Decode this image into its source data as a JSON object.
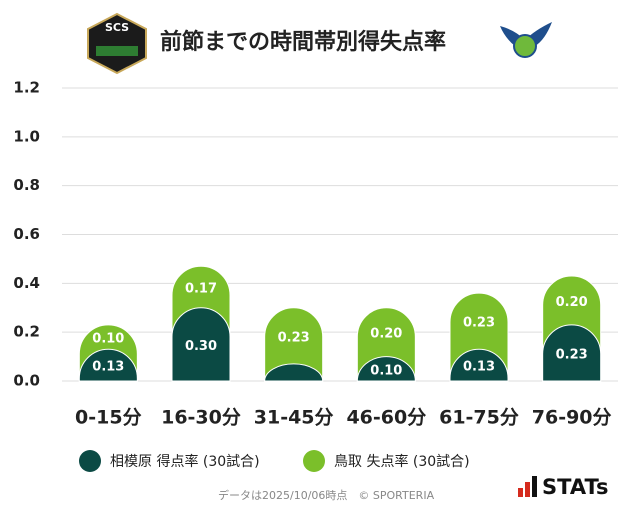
{
  "chart_data": {
    "type": "stacked_bar",
    "title": "前節までの時間帯別得失点率",
    "logo_text": "SCS",
    "categories": [
      "0-15分",
      "16-30分",
      "31-45分",
      "46-60分",
      "61-75分",
      "76-90分"
    ],
    "series": [
      {
        "name": "相模原 得点率 (30試合)",
        "color": "#0b4a44",
        "values": [
          0.13,
          0.3,
          0.07,
          0.1,
          0.13,
          0.23
        ],
        "value_labels": [
          "0.13",
          "0.30",
          null,
          "0.10",
          "0.13",
          "0.23"
        ]
      },
      {
        "name": "鳥取 失点率 (30試合)",
        "color": "#7bbf2a",
        "values": [
          0.1,
          0.17,
          0.23,
          0.2,
          0.23,
          0.2
        ],
        "value_labels": [
          "0.10",
          "0.17",
          "0.23",
          "0.20",
          "0.23",
          "0.20"
        ]
      }
    ],
    "ylim": [
      0,
      1.2
    ],
    "yticks": [
      {
        "value": 0,
        "label": "0.0"
      },
      {
        "value": 0.2,
        "label": "0.2"
      },
      {
        "value": 0.4,
        "label": "0.4"
      },
      {
        "value": 0.6,
        "label": "0.6"
      },
      {
        "value": 0.8,
        "label": "0.8"
      },
      {
        "value": 1,
        "label": "1.0"
      },
      {
        "value": 1.2,
        "label": "1.2"
      }
    ],
    "grid": true,
    "footnote": "データは2025/10/06時点　© SPORTERIA",
    "brand": "STATs"
  }
}
